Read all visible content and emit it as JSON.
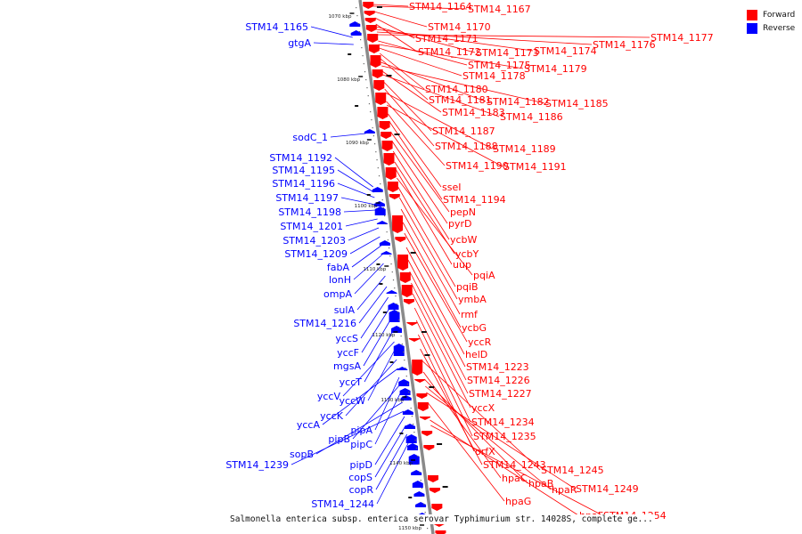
{
  "legend": {
    "forward_label": "Forward",
    "reverse_label": "Reverse",
    "forward_color": "#ff0000",
    "reverse_color": "#0000ff"
  },
  "colors": {
    "backbone": "#8a8a8a",
    "forward": "#ff0000",
    "reverse": "#0000ff"
  },
  "caption": "Salmonella enterica subsp. enterica serovar Typhimurium str. 14028S, complete ge...",
  "ticks": [
    "1070 kbp",
    "1080 kbp",
    "1090 kbp",
    "1100 kbp",
    "1110 kbp",
    "1120 kbp",
    "1130 kbp",
    "1140 kbp",
    "1150 kbp"
  ],
  "forward_genes": [
    "STM14_1164",
    "STM14_1167",
    "STM14_1170",
    "STM14_1171",
    "STM14_1172",
    "STM14_1173",
    "STM14_1174",
    "STM14_1176",
    "STM14_1177",
    "STM14_1175",
    "STM14_1179",
    "STM14_1178",
    "STM14_1180",
    "STM14_1181",
    "STM14_1182",
    "STM14_1185",
    "STM14_1183",
    "STM14_1186",
    "STM14_1187",
    "STM14_1188",
    "STM14_1189",
    "STM14_1190",
    "STM14_1191",
    "sseI",
    "STM14_1194",
    "pepN",
    "pyrD",
    "ycbW",
    "ycbY",
    "uup",
    "pqiA",
    "pqiB",
    "ymbA",
    "rmf",
    "ycbG",
    "yccR",
    "helD",
    "STM14_1223",
    "STM14_1226",
    "STM14_1227",
    "yccX",
    "STM14_1234",
    "STM14_1235",
    "orfX",
    "STM14_1243",
    "STM14_1245",
    "hpaC",
    "hpaB",
    "hpaR",
    "STM14_1249",
    "hpaG",
    "hpaF",
    "STM14_1254"
  ],
  "reverse_genes": [
    "STM14_1165",
    "gtgA",
    "sodC_1",
    "STM14_1192",
    "STM14_1195",
    "STM14_1196",
    "STM14_1197",
    "STM14_1198",
    "STM14_1201",
    "STM14_1203",
    "STM14_1209",
    "fabA",
    "lonH",
    "ompA",
    "sulA",
    "STM14_1216",
    "yccS",
    "yccF",
    "mgsA",
    "yccT",
    "yccV",
    "yccW",
    "yccK",
    "yccA",
    "pipA",
    "pipB",
    "pipC",
    "sopB",
    "STM14_1239",
    "pipD",
    "copS",
    "copR",
    "STM14_1244"
  ]
}
